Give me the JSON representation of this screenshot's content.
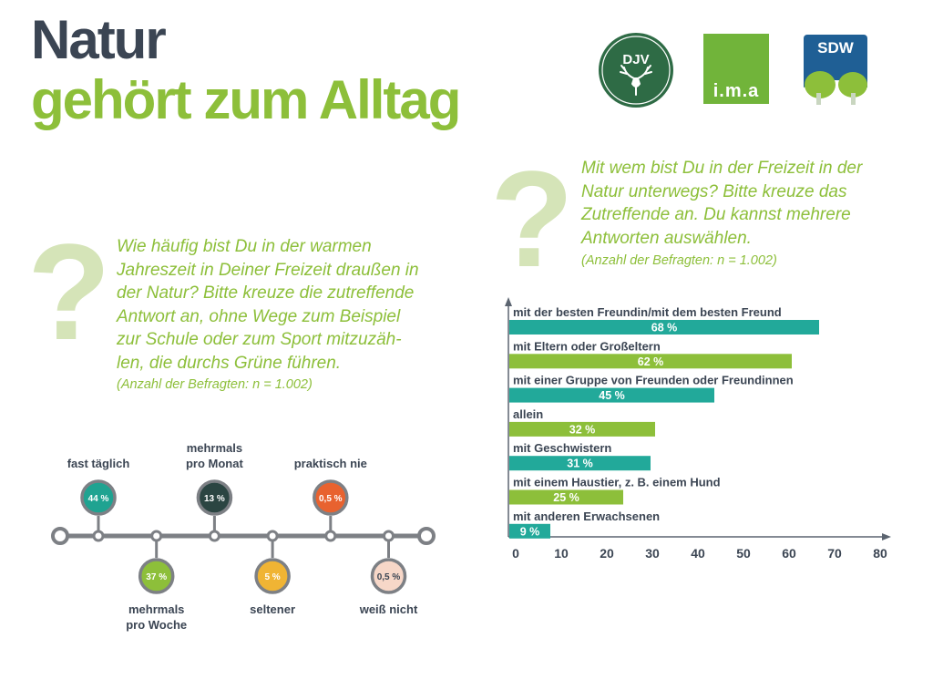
{
  "header": {
    "title_line1": "Natur",
    "title_line2": "gehört zum Alltag"
  },
  "logos": [
    {
      "name": "djv-logo",
      "text": "DJV"
    },
    {
      "name": "ima-logo",
      "text": "i.m.a"
    },
    {
      "name": "sdw-logo",
      "text": "SDW"
    }
  ],
  "question1": {
    "mark": "?",
    "lines": [
      "Wie häufig bist Du in der warmen",
      "Jahreszeit in Deiner Freizeit draußen in",
      "der Natur? Bitte kreuze die zutreffende",
      "Antwort an, ohne Wege zum Beispiel",
      "zur Schule oder zum Sport mitzuzäh-",
      "len, die durchs Grüne führen."
    ],
    "note": "(Anzahl der Befragten: n = 1.002)"
  },
  "question2": {
    "mark": "?",
    "lines": [
      "Mit wem bist Du in der Freizeit in der",
      "Natur unterwegs? Bitte kreuze das",
      "Zutreffende an. Du kannst mehrere",
      "Antworten auswählen."
    ],
    "note": "(Anzahl der Befragten: n = 1.002)"
  },
  "colors": {
    "title_dark": "#3b4553",
    "accent_green": "#8dbf3a",
    "teal": "#22a99a",
    "bar_green": "#8dbf3a",
    "axis": "#5b6470",
    "timeline_line": "#7d8085"
  },
  "chart_data": [
    {
      "type": "timeline",
      "items": [
        {
          "label": "fast täglich",
          "value": "44 %",
          "position": "above",
          "color": "#1fa391"
        },
        {
          "label": "mehrmals pro Woche",
          "value": "37 %",
          "position": "below",
          "color": "#8dbf3a"
        },
        {
          "label": "mehrmals pro Monat",
          "value": "13 %",
          "position": "above",
          "color": "#2b4542"
        },
        {
          "label": "seltener",
          "value": "5 %",
          "position": "below",
          "color": "#f0b434"
        },
        {
          "label": "praktisch nie",
          "value": "0,5 %",
          "position": "above",
          "color": "#e8622f"
        },
        {
          "label": "weiß nicht",
          "value": "0,5 %",
          "position": "below",
          "color": "#f7d7c8"
        }
      ]
    },
    {
      "type": "bar",
      "orientation": "horizontal",
      "categories": [
        "mit der besten Freundin/mit dem besten Freund",
        "mit Eltern oder Großeltern",
        "mit einer Gruppe von Freunden oder Freundinnen",
        "allein",
        "mit Geschwistern",
        "mit einem Haustier, z. B. einem Hund",
        "mit anderen Erwachsenen"
      ],
      "values": [
        68,
        62,
        45,
        32,
        31,
        25,
        9
      ],
      "value_labels": [
        "68 %",
        "62 %",
        "45 %",
        "32 %",
        "31 %",
        "25 %",
        "9 %"
      ],
      "bar_colors": [
        "#22a99a",
        "#8dbf3a",
        "#22a99a",
        "#8dbf3a",
        "#22a99a",
        "#8dbf3a",
        "#22a99a"
      ],
      "xlim": [
        0,
        80
      ],
      "xticks": [
        "0",
        "10",
        "20",
        "30",
        "40",
        "50",
        "60",
        "70",
        "80"
      ]
    }
  ]
}
